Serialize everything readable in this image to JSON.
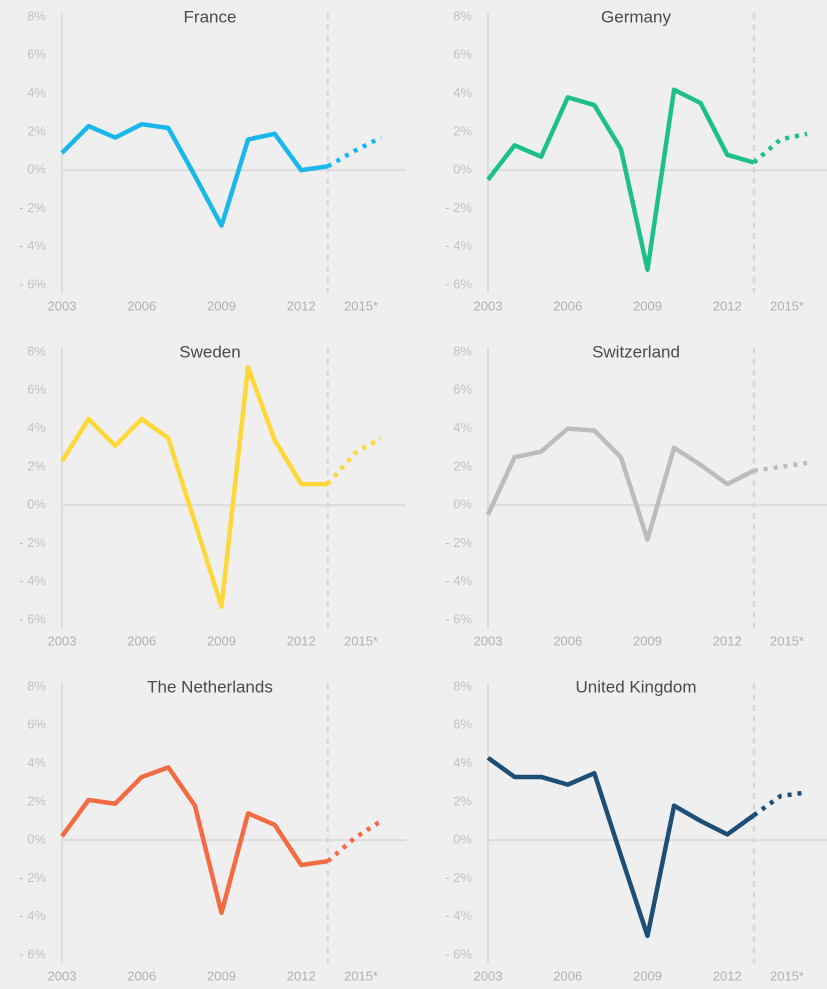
{
  "chart_data": [
    {
      "type": "line",
      "title": "France",
      "color": "#1ab7ea",
      "forecast_from": 2013,
      "zero_line": true,
      "x": [
        2003,
        2004,
        2005,
        2006,
        2007,
        2008,
        2009,
        2010,
        2011,
        2012,
        2013,
        2014,
        2015
      ],
      "values": [
        0.9,
        2.3,
        1.7,
        2.4,
        2.2,
        -0.3,
        -2.9,
        1.6,
        1.9,
        0.0,
        0.2,
        1.0,
        1.7
      ],
      "xlim": [
        2003,
        2015
      ],
      "xticks": [
        2003,
        2006,
        2009,
        2012,
        {
          "value": 2015,
          "label": "2015*"
        }
      ],
      "ylim": [
        -6,
        8
      ],
      "yticks": [
        {
          "value": 8,
          "label": "8%"
        },
        {
          "value": 6,
          "label": "6%"
        },
        {
          "value": 4,
          "label": "4%"
        },
        {
          "value": 2,
          "label": "2%"
        },
        {
          "value": 0,
          "label": "0%"
        },
        {
          "value": -2,
          "label": "- 2%"
        },
        {
          "value": -4,
          "label": "- 4%"
        },
        {
          "value": -6,
          "label": "- 6%"
        }
      ]
    },
    {
      "type": "line",
      "title": "Germany",
      "color": "#1dbf8b",
      "forecast_from": 2013,
      "zero_line": true,
      "x": [
        2003,
        2004,
        2005,
        2006,
        2007,
        2008,
        2009,
        2010,
        2011,
        2012,
        2013,
        2014,
        2015
      ],
      "values": [
        -0.5,
        1.3,
        0.7,
        3.8,
        3.4,
        1.1,
        -5.2,
        4.2,
        3.5,
        0.8,
        0.4,
        1.6,
        1.9
      ],
      "xlim": [
        2003,
        2015
      ],
      "xticks": [
        2003,
        2006,
        2009,
        2012,
        {
          "value": 2015,
          "label": "2015*"
        }
      ],
      "ylim": [
        -6,
        8
      ],
      "yticks": [
        {
          "value": 8,
          "label": "8%"
        },
        {
          "value": 6,
          "label": "6%"
        },
        {
          "value": 4,
          "label": "4%"
        },
        {
          "value": 2,
          "label": "2%"
        },
        {
          "value": 0,
          "label": "0%"
        },
        {
          "value": -2,
          "label": "- 2%"
        },
        {
          "value": -4,
          "label": "- 4%"
        },
        {
          "value": -6,
          "label": "- 6%"
        }
      ]
    },
    {
      "type": "line",
      "title": "Sweden",
      "color": "#fdd838",
      "forecast_from": 2013,
      "zero_line": true,
      "x": [
        2003,
        2004,
        2005,
        2006,
        2007,
        2008,
        2009,
        2010,
        2011,
        2012,
        2013,
        2014,
        2015
      ],
      "values": [
        2.3,
        4.5,
        3.1,
        4.5,
        3.5,
        -0.9,
        -5.3,
        7.2,
        3.4,
        1.1,
        1.1,
        2.7,
        3.5
      ],
      "xlim": [
        2003,
        2015
      ],
      "xticks": [
        2003,
        2006,
        2009,
        2012,
        {
          "value": 2015,
          "label": "2015*"
        }
      ],
      "ylim": [
        -6,
        8
      ],
      "yticks": [
        {
          "value": 8,
          "label": "8%"
        },
        {
          "value": 6,
          "label": "6%"
        },
        {
          "value": 4,
          "label": "4%"
        },
        {
          "value": 2,
          "label": "2%"
        },
        {
          "value": 0,
          "label": "0%"
        },
        {
          "value": -2,
          "label": "- 2%"
        },
        {
          "value": -4,
          "label": "- 4%"
        },
        {
          "value": -6,
          "label": "- 6%"
        }
      ]
    },
    {
      "type": "line",
      "title": "Switzerland",
      "color": "#bcbcbc",
      "forecast_from": 2013,
      "zero_line": true,
      "x": [
        2003,
        2004,
        2005,
        2006,
        2007,
        2008,
        2009,
        2010,
        2011,
        2012,
        2013,
        2014,
        2015
      ],
      "values": [
        -0.5,
        2.5,
        2.8,
        4.0,
        3.9,
        2.5,
        -1.8,
        3.0,
        2.1,
        1.1,
        1.8,
        2.0,
        2.2
      ],
      "xlim": [
        2003,
        2015
      ],
      "xticks": [
        2003,
        2006,
        2009,
        2012,
        {
          "value": 2015,
          "label": "2015*"
        }
      ],
      "ylim": [
        -6,
        8
      ],
      "yticks": [
        {
          "value": 8,
          "label": "8%"
        },
        {
          "value": 6,
          "label": "6%"
        },
        {
          "value": 4,
          "label": "4%"
        },
        {
          "value": 2,
          "label": "2%"
        },
        {
          "value": 0,
          "label": "0%"
        },
        {
          "value": -2,
          "label": "- 2%"
        },
        {
          "value": -4,
          "label": "- 4%"
        },
        {
          "value": -6,
          "label": "- 6%"
        }
      ]
    },
    {
      "type": "line",
      "title": "The Netherlands",
      "color": "#f26b43",
      "forecast_from": 2013,
      "zero_line": true,
      "x": [
        2003,
        2004,
        2005,
        2006,
        2007,
        2008,
        2009,
        2010,
        2011,
        2012,
        2013,
        2014,
        2015
      ],
      "values": [
        0.2,
        2.1,
        1.9,
        3.3,
        3.8,
        1.8,
        -3.8,
        1.4,
        0.8,
        -1.3,
        -1.1,
        0.1,
        1.0
      ],
      "xlim": [
        2003,
        2015
      ],
      "xticks": [
        2003,
        2006,
        2009,
        2012,
        {
          "value": 2015,
          "label": "2015*"
        }
      ],
      "ylim": [
        -6,
        8
      ],
      "yticks": [
        {
          "value": 8,
          "label": "8%"
        },
        {
          "value": 6,
          "label": "6%"
        },
        {
          "value": 4,
          "label": "4%"
        },
        {
          "value": 2,
          "label": "2%"
        },
        {
          "value": 0,
          "label": "0%"
        },
        {
          "value": -2,
          "label": "- 2%"
        },
        {
          "value": -4,
          "label": "- 4%"
        },
        {
          "value": -6,
          "label": "- 6%"
        }
      ]
    },
    {
      "type": "line",
      "title": "United Kingdom",
      "color": "#1c4e77",
      "forecast_from": 2013,
      "zero_line": true,
      "x": [
        2003,
        2004,
        2005,
        2006,
        2007,
        2008,
        2009,
        2010,
        2011,
        2012,
        2013,
        2014,
        2015
      ],
      "values": [
        4.3,
        3.3,
        3.3,
        2.9,
        3.5,
        -0.8,
        -5.0,
        1.8,
        1.0,
        0.3,
        1.3,
        2.3,
        2.5
      ],
      "xlim": [
        2003,
        2015
      ],
      "xticks": [
        2003,
        2006,
        2009,
        2012,
        {
          "value": 2015,
          "label": "2015*"
        }
      ],
      "ylim": [
        -6,
        8
      ],
      "yticks": [
        {
          "value": 8,
          "label": "8%"
        },
        {
          "value": 6,
          "label": "6%"
        },
        {
          "value": 4,
          "label": "4%"
        },
        {
          "value": 2,
          "label": "2%"
        },
        {
          "value": 0,
          "label": "0%"
        },
        {
          "value": -2,
          "label": "- 2%"
        },
        {
          "value": -4,
          "label": "- 4%"
        },
        {
          "value": -6,
          "label": "- 6%"
        }
      ]
    }
  ]
}
